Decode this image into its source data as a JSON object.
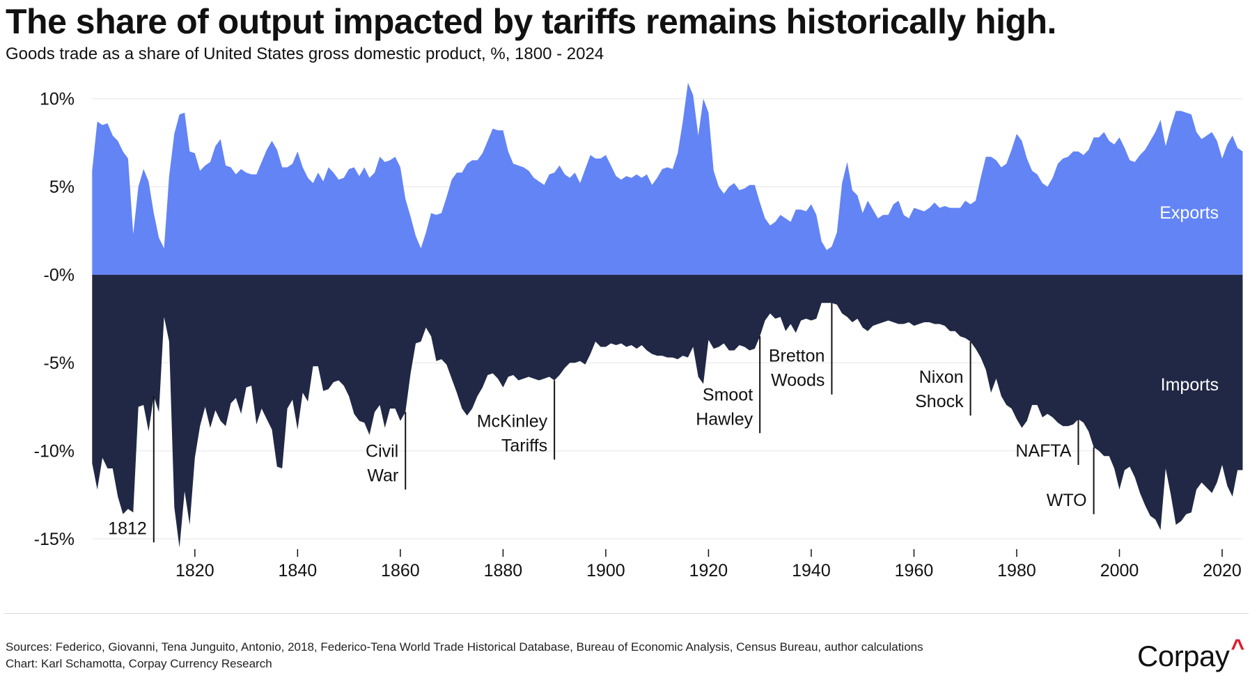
{
  "header": {
    "title": "The share of output impacted by tariffs remains historically high.",
    "subtitle": "Goods trade as a share of United States gross domestic product, %, 1800 - 2024"
  },
  "footer": {
    "sources": "Sources: Federico, Giovanni, Tena Junguito, Antonio, 2018, Federico-Tena World Trade Historical Database, Bureau of Economic Analysis, Census Bureau, author calculations",
    "credit": "Chart: Karl Schamotta, Corpay Currency Research",
    "logo": "Corpay"
  },
  "chart_data": {
    "type": "area",
    "title": "The share of output impacted by tariffs remains historically high.",
    "subtitle": "Goods trade as a share of United States gross domestic product, %, 1800 - 2024",
    "xlabel": "",
    "ylabel": "",
    "xlim": [
      1800,
      2024
    ],
    "ylim": [
      -15,
      10
    ],
    "grid": true,
    "y_ticks": [
      10,
      5,
      0,
      -5,
      -10,
      -15
    ],
    "y_tick_labels": [
      "10%",
      "5%",
      "-0%",
      "-5%",
      "-10%",
      "-15%"
    ],
    "x_ticks": [
      1820,
      1840,
      1860,
      1880,
      1900,
      1920,
      1940,
      1960,
      1980,
      2000,
      2020
    ],
    "x_tick_labels": [
      "1820",
      "1840",
      "1860",
      "1880",
      "1900",
      "1920",
      "1940",
      "1960",
      "1980",
      "2000",
      "2020"
    ],
    "x_start": 1800,
    "colors": {
      "exports": "#6384f5",
      "imports": "#212845"
    },
    "series": [
      {
        "name": "Exports",
        "values": [
          5.9,
          8.7,
          8.5,
          8.6,
          7.9,
          7.6,
          7.0,
          6.6,
          2.3,
          5.0,
          6.0,
          5.3,
          3.5,
          2.1,
          1.5,
          5.6,
          8.0,
          9.1,
          9.2,
          7.0,
          6.9,
          5.9,
          6.2,
          6.4,
          7.3,
          7.7,
          6.2,
          6.1,
          5.7,
          6.0,
          5.8,
          5.7,
          5.7,
          6.4,
          7.1,
          7.6,
          7.1,
          6.1,
          6.1,
          6.3,
          7.0,
          6.1,
          5.5,
          5.2,
          5.8,
          5.3,
          6.1,
          5.8,
          5.4,
          5.5,
          6.0,
          6.1,
          5.6,
          6.1,
          5.5,
          5.8,
          6.7,
          6.4,
          6.5,
          6.7,
          6.1,
          4.3,
          3.3,
          2.2,
          1.5,
          2.4,
          3.5,
          3.4,
          3.5,
          4.4,
          5.4,
          5.8,
          5.8,
          6.3,
          6.5,
          6.5,
          6.9,
          7.6,
          8.3,
          8.2,
          8.2,
          7.0,
          6.3,
          6.2,
          6.1,
          5.9,
          5.5,
          5.3,
          5.1,
          5.7,
          5.8,
          6.2,
          5.7,
          5.5,
          5.8,
          5.2,
          6.0,
          6.8,
          6.6,
          6.6,
          6.8,
          6.2,
          5.6,
          5.4,
          5.6,
          5.5,
          5.7,
          5.5,
          5.7,
          5.1,
          5.5,
          6.0,
          6.1,
          6.0,
          6.9,
          8.7,
          10.9,
          10.2,
          7.9,
          10.0,
          9.2,
          5.9,
          5.0,
          4.6,
          5.0,
          5.2,
          4.8,
          4.9,
          5.1,
          5.1,
          4.1,
          3.2,
          2.8,
          3.0,
          3.4,
          3.2,
          3.0,
          3.7,
          3.7,
          3.6,
          4.0,
          3.4,
          1.9,
          1.4,
          1.6,
          2.4,
          5.2,
          6.4,
          4.8,
          4.5,
          3.5,
          4.2,
          3.7,
          3.2,
          3.4,
          3.4,
          4.0,
          4.2,
          3.4,
          3.2,
          3.8,
          3.7,
          3.6,
          3.8,
          4.1,
          3.8,
          3.9,
          3.8,
          3.8,
          3.8,
          4.2,
          4.0,
          4.2,
          5.5,
          6.7,
          6.7,
          6.5,
          6.1,
          6.3,
          7.1,
          8.0,
          7.6,
          6.6,
          5.9,
          5.7,
          5.2,
          5.0,
          5.5,
          6.3,
          6.6,
          6.7,
          7.0,
          7.0,
          6.8,
          7.1,
          7.8,
          7.8,
          8.1,
          7.6,
          7.4,
          7.8,
          7.2,
          6.5,
          6.4,
          6.8,
          7.1,
          7.6,
          8.1,
          8.8,
          7.3,
          8.4,
          9.3,
          9.3,
          9.2,
          9.1,
          8.1,
          7.7,
          7.9,
          8.1,
          7.6,
          6.6,
          7.4,
          7.9,
          7.2,
          7.0
        ]
      },
      {
        "name": "Imports",
        "values": [
          -10.7,
          -12.2,
          -10.4,
          -11.0,
          -11.0,
          -12.6,
          -13.6,
          -13.3,
          -13.5,
          -7.5,
          -7.4,
          -8.9,
          -6.9,
          -7.8,
          -2.4,
          -3.8,
          -13.2,
          -15.5,
          -12.3,
          -14.2,
          -10.4,
          -8.6,
          -7.5,
          -8.7,
          -7.7,
          -8.3,
          -8.6,
          -7.3,
          -7.0,
          -7.9,
          -6.4,
          -6.3,
          -8.5,
          -7.6,
          -8.2,
          -8.8,
          -10.9,
          -11.0,
          -7.6,
          -7.1,
          -8.8,
          -6.7,
          -7.2,
          -5.2,
          -5.2,
          -6.6,
          -6.5,
          -6.1,
          -6.0,
          -6.3,
          -6.9,
          -7.9,
          -8.3,
          -8.4,
          -9.1,
          -7.8,
          -7.4,
          -8.7,
          -7.6,
          -7.6,
          -8.3,
          -7.8,
          -5.6,
          -3.9,
          -3.8,
          -3.0,
          -3.5,
          -4.9,
          -4.8,
          -5.1,
          -5.9,
          -6.7,
          -7.6,
          -8.0,
          -7.6,
          -6.9,
          -6.4,
          -5.7,
          -5.6,
          -5.9,
          -6.4,
          -5.8,
          -5.7,
          -6.0,
          -5.9,
          -5.8,
          -5.9,
          -6.0,
          -5.9,
          -5.8,
          -6.0,
          -5.7,
          -5.3,
          -5.0,
          -5.0,
          -4.9,
          -5.1,
          -4.5,
          -3.8,
          -4.1,
          -4.1,
          -3.9,
          -4.0,
          -3.9,
          -4.1,
          -4.0,
          -4.2,
          -4.0,
          -4.3,
          -4.5,
          -4.6,
          -4.6,
          -4.7,
          -4.7,
          -4.8,
          -4.6,
          -4.7,
          -4.1,
          -5.8,
          -6.2,
          -3.7,
          -4.2,
          -4.1,
          -3.9,
          -4.3,
          -4.3,
          -4.0,
          -4.1,
          -4.3,
          -4.2,
          -3.5,
          -2.6,
          -2.2,
          -2.5,
          -2.4,
          -3.2,
          -2.8,
          -3.3,
          -2.6,
          -2.5,
          -2.6,
          -2.5,
          -1.6,
          -1.6,
          -1.6,
          -1.7,
          -2.2,
          -2.4,
          -2.7,
          -2.5,
          -3.0,
          -3.2,
          -2.9,
          -2.8,
          -2.7,
          -2.6,
          -2.7,
          -2.8,
          -2.8,
          -2.7,
          -2.9,
          -2.8,
          -2.7,
          -2.7,
          -2.8,
          -2.8,
          -2.9,
          -3.2,
          -3.2,
          -3.5,
          -3.6,
          -3.8,
          -4.2,
          -4.7,
          -5.4,
          -6.7,
          -5.9,
          -6.9,
          -7.4,
          -7.6,
          -8.2,
          -8.7,
          -8.3,
          -7.4,
          -7.4,
          -8.1,
          -7.9,
          -8.1,
          -8.4,
          -8.6,
          -8.6,
          -8.5,
          -8.2,
          -8.4,
          -8.9,
          -9.8,
          -10.0,
          -10.3,
          -10.3,
          -11.0,
          -12.2,
          -11.1,
          -10.9,
          -11.5,
          -12.4,
          -13.1,
          -13.7,
          -13.9,
          -14.5,
          -11.0,
          -12.5,
          -14.2,
          -14.0,
          -13.6,
          -13.5,
          -12.2,
          -11.8,
          -12.1,
          -12.4,
          -11.8,
          -10.8,
          -12.0,
          -12.6,
          -11.1,
          -11.1
        ]
      }
    ],
    "annotations": [
      {
        "label": [
          "1812"
        ],
        "year": 1812,
        "to": -15.2
      },
      {
        "label": [
          "Civil",
          "War"
        ],
        "year": 1861,
        "to": -12.2
      },
      {
        "label": [
          "McKinley",
          "Tariffs"
        ],
        "year": 1890,
        "to": -10.5
      },
      {
        "label": [
          "Smoot",
          "Hawley"
        ],
        "year": 1930,
        "to": -9.0
      },
      {
        "label": [
          "Bretton",
          "Woods"
        ],
        "year": 1944,
        "to": -6.8
      },
      {
        "label": [
          "Nixon",
          "Shock"
        ],
        "year": 1971,
        "to": -8.0
      },
      {
        "label": [
          "NAFTA"
        ],
        "year": 1992,
        "to": -10.8
      },
      {
        "label": [
          "WTO"
        ],
        "year": 1995,
        "to": -13.6
      }
    ]
  }
}
